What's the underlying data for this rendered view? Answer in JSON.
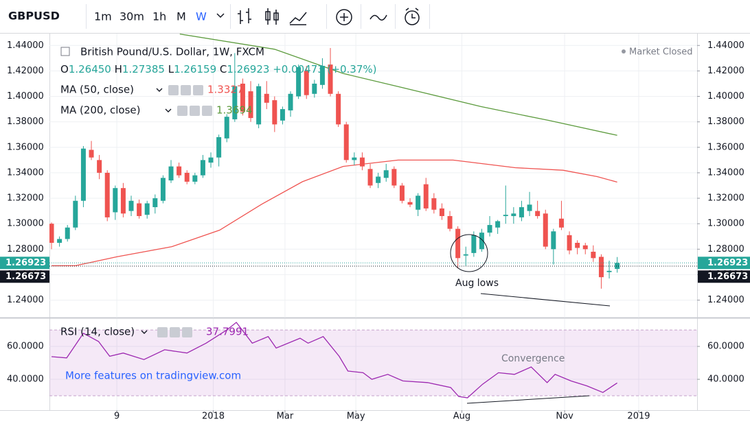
{
  "toolbar": {
    "symbol": "GBPUSD",
    "intervals": [
      "1m",
      "30m",
      "1h",
      "M",
      "W"
    ]
  },
  "chart_data": [
    {
      "type": "candlestick",
      "title": "British Pound/U.S. Dollar, 1W, FXCM",
      "status": "Market Closed",
      "ohlc_legend": [
        {
          "key": "O",
          "value": "1.26450"
        },
        {
          "key": "H",
          "value": "1.27385"
        },
        {
          "key": "L",
          "value": "1.26159"
        },
        {
          "key": "C",
          "value": "1.26923"
        }
      ],
      "change": "+0.00473 (+0.37%)",
      "up_color": "#26a69a",
      "down_color": "#ef5350",
      "x": [
        0,
        1,
        2,
        3,
        4,
        5,
        6,
        7,
        8,
        9,
        10,
        11,
        12,
        13,
        14,
        15,
        16,
        17,
        18,
        19,
        20,
        21,
        22,
        23,
        24,
        25,
        26,
        27,
        28,
        29,
        30,
        31,
        32,
        33,
        34,
        35,
        36,
        37,
        38,
        39,
        40,
        41,
        42,
        43,
        44,
        45,
        46,
        47,
        48,
        49,
        50,
        51,
        52,
        53,
        54,
        55,
        56,
        57,
        58,
        59,
        60,
        61,
        62,
        63,
        64,
        65,
        66,
        67,
        68,
        69,
        70,
        71
      ],
      "open": [
        1.3,
        1.285,
        1.288,
        1.297,
        1.318,
        1.358,
        1.35,
        1.34,
        1.309,
        1.328,
        1.31,
        1.316,
        1.307,
        1.313,
        1.318,
        1.334,
        1.345,
        1.34,
        1.333,
        1.338,
        1.348,
        1.352,
        1.367,
        1.382,
        1.41,
        1.404,
        1.378,
        1.402,
        1.397,
        1.381,
        1.389,
        1.4,
        1.42,
        1.402,
        1.409,
        1.425,
        1.402,
        1.378,
        1.35,
        1.352,
        1.343,
        1.332,
        1.336,
        1.343,
        1.33,
        1.317,
        1.311,
        1.331,
        1.32,
        1.312,
        1.306,
        1.296,
        1.275,
        1.277,
        1.28,
        1.293,
        1.297,
        1.306,
        1.306,
        1.305,
        1.31,
        1.31,
        1.308,
        1.28,
        1.304,
        1.291,
        1.285,
        1.283,
        1.278,
        1.274,
        1.262,
        1.2645
      ],
      "high": [
        1.301,
        1.29,
        1.299,
        1.322,
        1.361,
        1.365,
        1.354,
        1.342,
        1.33,
        1.332,
        1.322,
        1.319,
        1.318,
        1.323,
        1.338,
        1.35,
        1.348,
        1.342,
        1.34,
        1.354,
        1.356,
        1.37,
        1.386,
        1.434,
        1.414,
        1.412,
        1.41,
        1.412,
        1.4,
        1.392,
        1.404,
        1.425,
        1.424,
        1.413,
        1.43,
        1.438,
        1.404,
        1.38,
        1.356,
        1.356,
        1.347,
        1.34,
        1.347,
        1.345,
        1.332,
        1.32,
        1.324,
        1.336,
        1.324,
        1.316,
        1.31,
        1.298,
        1.282,
        1.294,
        1.296,
        1.306,
        1.303,
        1.33,
        1.313,
        1.318,
        1.325,
        1.318,
        1.311,
        1.296,
        1.318,
        1.294,
        1.287,
        1.285,
        1.283,
        1.276,
        1.271,
        1.27385
      ],
      "low": [
        1.28,
        1.282,
        1.286,
        1.295,
        1.313,
        1.35,
        1.335,
        1.302,
        1.303,
        1.305,
        1.306,
        1.304,
        1.304,
        1.308,
        1.316,
        1.332,
        1.336,
        1.331,
        1.331,
        1.336,
        1.344,
        1.345,
        1.364,
        1.38,
        1.385,
        1.38,
        1.375,
        1.39,
        1.372,
        1.378,
        1.384,
        1.398,
        1.398,
        1.399,
        1.406,
        1.4,
        1.376,
        1.348,
        1.346,
        1.342,
        1.328,
        1.328,
        1.333,
        1.328,
        1.316,
        1.313,
        1.306,
        1.31,
        1.308,
        1.303,
        1.294,
        1.265,
        1.267,
        1.274,
        1.278,
        1.29,
        1.292,
        1.3,
        1.3,
        1.302,
        1.306,
        1.304,
        1.28,
        1.268,
        1.295,
        1.276,
        1.276,
        1.276,
        1.27,
        1.249,
        1.257,
        1.26159
      ],
      "close": [
        1.285,
        1.288,
        1.297,
        1.318,
        1.359,
        1.352,
        1.34,
        1.305,
        1.328,
        1.308,
        1.318,
        1.306,
        1.316,
        1.32,
        1.336,
        1.345,
        1.338,
        1.333,
        1.338,
        1.35,
        1.352,
        1.368,
        1.384,
        1.408,
        1.388,
        1.383,
        1.408,
        1.395,
        1.378,
        1.39,
        1.402,
        1.423,
        1.401,
        1.41,
        1.424,
        1.402,
        1.378,
        1.35,
        1.352,
        1.345,
        1.33,
        1.337,
        1.342,
        1.33,
        1.318,
        1.315,
        1.322,
        1.312,
        1.311,
        1.306,
        1.296,
        1.273,
        1.276,
        1.291,
        1.293,
        1.299,
        1.302,
        1.307,
        1.308,
        1.313,
        1.315,
        1.306,
        1.282,
        1.294,
        1.297,
        1.279,
        1.281,
        1.28,
        1.273,
        1.258,
        1.263,
        1.26923
      ],
      "indicators": [
        {
          "name": "MA (50, close)",
          "value_label": "1.3327",
          "color": "#ef5350",
          "x": [
            0,
            3,
            8.2,
            15.1,
            21.1,
            26.3,
            31.5,
            36.6,
            43.5,
            50.4,
            58.2,
            64.2,
            68.5,
            71
          ],
          "values": [
            1.267,
            1.267,
            1.274,
            1.282,
            1.295,
            1.315,
            1.333,
            1.345,
            1.35,
            1.35,
            1.344,
            1.342,
            1.337,
            1.3327
          ]
        },
        {
          "name": "MA (200, close)",
          "value_label": "1.3694",
          "color": "#5b9a3c",
          "x": [
            16.1,
            28,
            36.6,
            45.3,
            53.9,
            62.5,
            71
          ],
          "values": [
            1.449,
            1.437,
            1.418,
            1.405,
            1.392,
            1.381,
            1.3694
          ]
        }
      ],
      "price_lines": [
        {
          "value": 1.26923,
          "color": "#26a69a"
        },
        {
          "value": 1.26673,
          "color": "#131722"
        }
      ],
      "annotation": "Aug lows",
      "xlim": [
        -0.26,
        81.03
      ],
      "ylim": [
        1.2263,
        1.4493
      ],
      "yticks": [
        {
          "value": 1.24,
          "label": "1.24000"
        },
        {
          "value": 1.26,
          "label": "1.26000"
        },
        {
          "value": 1.28,
          "label": "1.28000"
        },
        {
          "value": 1.3,
          "label": "1.30000"
        },
        {
          "value": 1.32,
          "label": "1.32000"
        },
        {
          "value": 1.34,
          "label": "1.34000"
        },
        {
          "value": 1.36,
          "label": "1.36000"
        },
        {
          "value": 1.38,
          "label": "1.38000"
        },
        {
          "value": 1.4,
          "label": "1.40000"
        },
        {
          "value": 1.42,
          "label": "1.42000"
        },
        {
          "value": 1.44,
          "label": "1.44000"
        }
      ],
      "grid": true
    },
    {
      "type": "line",
      "series": [
        {
          "name": "RSI (14, close)",
          "value_label": "37.7991",
          "color": "#9c27b0",
          "x": [
            0,
            1.9,
            4,
            5.9,
            7.3,
            9,
            11.6,
            14.2,
            17,
            19.4,
            22,
            23.2,
            25.2,
            27.2,
            28.2,
            31.2,
            32.2,
            34.1,
            36.1,
            37.2,
            39.1,
            40.2,
            42.2,
            44.1,
            47.2,
            50.1,
            51.1,
            52.2,
            54.1,
            56.1,
            58.1,
            60.2,
            62.2,
            63.2,
            65.2,
            67.2,
            69.2,
            71
          ],
          "values": [
            53.75,
            53,
            68,
            63,
            54,
            56,
            52,
            58,
            56,
            62,
            70,
            74.6,
            62,
            66,
            59,
            65,
            62,
            66,
            54,
            45,
            44,
            40,
            43,
            39,
            38,
            35,
            29.6,
            28.75,
            37,
            44,
            43,
            47.5,
            38,
            43,
            39,
            36,
            32,
            37.7991
          ]
        }
      ],
      "levels": [
        30,
        70
      ],
      "annotation": "Convergence",
      "watermark": "More features on tradingview.com",
      "xlim": [
        -0.26,
        81.03
      ],
      "ylim": [
        21.25,
        76.7
      ],
      "yticks": [
        {
          "value": 40,
          "label": "40.0000"
        },
        {
          "value": 60,
          "label": "60.0000"
        }
      ],
      "xticks": [
        {
          "value": 8.2,
          "label": "9"
        },
        {
          "value": 20.3,
          "label": "2018"
        },
        {
          "value": 29.3,
          "label": "Mar"
        },
        {
          "value": 38.2,
          "label": "May"
        },
        {
          "value": 51.5,
          "label": "Aug"
        },
        {
          "value": 64.4,
          "label": "Nov"
        },
        {
          "value": 73.7,
          "label": "2019"
        }
      ],
      "grid": true
    }
  ]
}
